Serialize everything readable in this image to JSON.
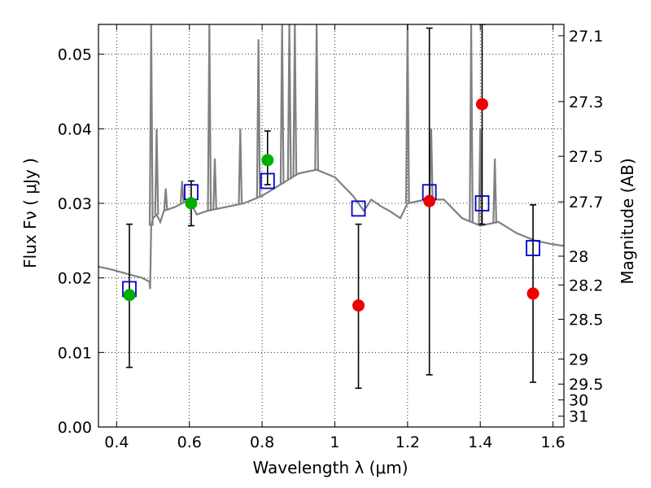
{
  "chart_data": {
    "type": "scatter",
    "xlabel": "Wavelength  λ (μm)",
    "ylabel": "Flux  Fν  ( μJy )",
    "ylabel_right": "Magnitude (AB)",
    "xlim": [
      0.35,
      1.63
    ],
    "ylim": [
      0.0,
      0.054
    ],
    "grid": true,
    "x_ticks": [
      0.4,
      0.6,
      0.8,
      1.0,
      1.2,
      1.4,
      1.6
    ],
    "x_tick_labels": [
      "0.4",
      "0.6",
      "0.8",
      "1",
      "1.2",
      "1.4",
      "1.6"
    ],
    "y_ticks": [
      0.0,
      0.01,
      0.02,
      0.03,
      0.04,
      0.05
    ],
    "y_tick_labels": [
      "0.00",
      "0.01",
      "0.02",
      "0.03",
      "0.04",
      "0.05"
    ],
    "mag_ticks": [
      27.1,
      27.3,
      27.5,
      27.7,
      28,
      28.2,
      28.5,
      29,
      29.5,
      30,
      31
    ],
    "mag_tick_labels": [
      "27.1",
      "27.3",
      "27.5",
      "27.7",
      "28",
      "28.2",
      "28.5",
      "29",
      "29.5",
      "30",
      "31"
    ],
    "colors": {
      "model": "#808080",
      "green": "#00b000",
      "red": "#ee0000",
      "box": "#0000cc",
      "errorbar": "#000000"
    },
    "model_spectrum": {
      "x": [
        0.35,
        0.38,
        0.41,
        0.44,
        0.47,
        0.49,
        0.492,
        0.495,
        0.5,
        0.51,
        0.52,
        0.53,
        0.56,
        0.6,
        0.62,
        0.65,
        0.7,
        0.75,
        0.8,
        0.85,
        0.9,
        0.95,
        1.0,
        1.05,
        1.08,
        1.1,
        1.13,
        1.15,
        1.18,
        1.2,
        1.25,
        1.3,
        1.35,
        1.4,
        1.45,
        1.5,
        1.55,
        1.6,
        1.63
      ],
      "y": [
        0.0215,
        0.0212,
        0.0208,
        0.0204,
        0.02,
        0.0195,
        0.0185,
        0.027,
        0.028,
        0.0285,
        0.0275,
        0.029,
        0.0295,
        0.0305,
        0.0285,
        0.029,
        0.0295,
        0.03,
        0.031,
        0.0325,
        0.034,
        0.0345,
        0.0335,
        0.031,
        0.029,
        0.0305,
        0.0295,
        0.029,
        0.028,
        0.03,
        0.0305,
        0.0305,
        0.028,
        0.027,
        0.0275,
        0.026,
        0.025,
        0.0245,
        0.0243
      ]
    },
    "emission_lines": [
      {
        "x": 0.495,
        "peak": 0.054
      },
      {
        "x": 0.51,
        "peak": 0.04
      },
      {
        "x": 0.535,
        "peak": 0.032
      },
      {
        "x": 0.58,
        "peak": 0.033
      },
      {
        "x": 0.655,
        "peak": 0.054
      },
      {
        "x": 0.67,
        "peak": 0.036
      },
      {
        "x": 0.74,
        "peak": 0.04
      },
      {
        "x": 0.79,
        "peak": 0.052
      },
      {
        "x": 0.855,
        "peak": 0.054
      },
      {
        "x": 0.875,
        "peak": 0.054
      },
      {
        "x": 0.89,
        "peak": 0.054
      },
      {
        "x": 0.95,
        "peak": 0.054
      },
      {
        "x": 1.2,
        "peak": 0.054
      },
      {
        "x": 1.265,
        "peak": 0.04
      },
      {
        "x": 1.375,
        "peak": 0.054
      },
      {
        "x": 1.4,
        "peak": 0.04
      },
      {
        "x": 1.44,
        "peak": 0.036
      }
    ],
    "series": [
      {
        "marker": "square-open",
        "x": [
          0.435,
          0.605,
          0.815,
          1.065,
          1.26,
          1.405,
          1.545
        ],
        "values": [
          0.0185,
          0.0315,
          0.033,
          0.0293,
          0.0315,
          0.03,
          0.024
        ]
      },
      {
        "marker": "circle-green",
        "x": [
          0.435,
          0.605,
          0.815
        ],
        "values": [
          0.0177,
          0.03,
          0.0358
        ],
        "err_low": [
          0.008,
          0.027,
          0.0325
        ],
        "err_high": [
          0.0272,
          0.033,
          0.0397
        ]
      },
      {
        "marker": "circle-red",
        "x": [
          1.065,
          1.26,
          1.405,
          1.545
        ],
        "values": [
          0.0163,
          0.0303,
          0.0433,
          0.0179
        ],
        "err_low": [
          0.0052,
          0.007,
          0.0272,
          0.006
        ],
        "err_high": [
          0.0272,
          0.0535,
          0.054,
          0.0298
        ]
      }
    ]
  }
}
